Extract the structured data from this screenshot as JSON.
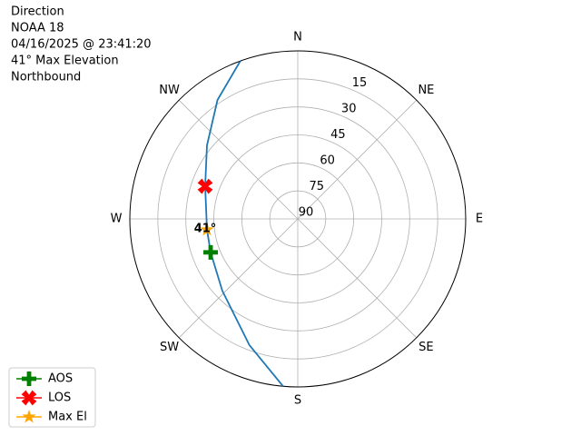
{
  "chart_data": {
    "type": "polar",
    "title_lines": [
      "Direction",
      "NOAA 18",
      "04/16/2025 @ 23:41:20",
      "41° Max Elevation",
      "Northbound"
    ],
    "rlim": [
      90,
      0
    ],
    "rticks": [
      15,
      30,
      45,
      60,
      75,
      90
    ],
    "thetaticks": [
      {
        "value": 0,
        "label": "N"
      },
      {
        "value": 45,
        "label": "NE"
      },
      {
        "value": 90,
        "label": "E"
      },
      {
        "value": 135,
        "label": "SE"
      },
      {
        "value": 180,
        "label": "S"
      },
      {
        "value": 225,
        "label": "SW"
      },
      {
        "value": 270,
        "label": "W"
      },
      {
        "value": 315,
        "label": "NW"
      }
    ],
    "grid": true,
    "track": {
      "color": "#1f77b4",
      "theta": [
        340,
        326,
        309,
        289.4,
        263.2,
        249,
        226.4,
        201,
        185
      ],
      "r": [
        0,
        13.1,
        27.4,
        37.4,
        41,
        40,
        34.2,
        17.6,
        0
      ]
    },
    "series": [
      {
        "name": "AOS",
        "color": "#008000",
        "marker": "plus",
        "theta": [
          249
        ],
        "r": [
          40
        ]
      },
      {
        "name": "LOS",
        "color": "#ff0000",
        "marker": "x",
        "theta": [
          289.4
        ],
        "r": [
          37.4
        ]
      },
      {
        "name": "Max El",
        "color": "#ffa500",
        "marker": "star",
        "theta": [
          263.2
        ],
        "r": [
          41
        ]
      }
    ],
    "annotation": {
      "text": "41°",
      "theta": 263.2,
      "r": 41
    },
    "legend_loc": "lower left"
  }
}
